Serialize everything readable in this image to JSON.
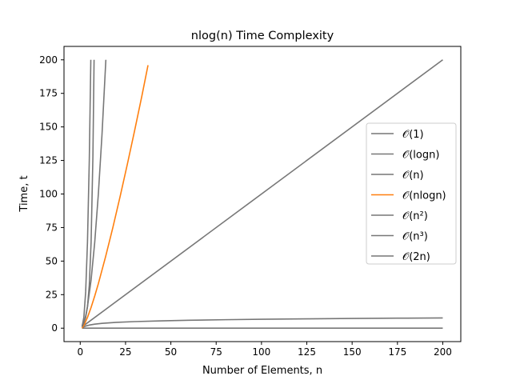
{
  "chart_data": {
    "type": "line",
    "title": "nlog(n) Time Complexity",
    "xlabel": "Number of Elements, n",
    "ylabel": "Time, t",
    "xlim": [
      -8.95,
      209.95
    ],
    "ylim": [
      -10.0,
      210.0
    ],
    "xticks": [
      0,
      25,
      50,
      75,
      100,
      125,
      150,
      175,
      200
    ],
    "yticks": [
      0,
      25,
      50,
      75,
      100,
      125,
      150,
      175,
      200
    ],
    "grid": false,
    "legend_position": "right",
    "series": [
      {
        "name": "𝒪(1)",
        "color": "#777777",
        "x": [
          1,
          200
        ],
        "y": [
          0,
          0
        ]
      },
      {
        "name": "𝒪(logn)",
        "color": "#777777",
        "x": [
          1,
          2,
          3,
          5,
          8,
          12,
          20,
          30,
          45,
          60,
          80,
          100,
          125,
          150,
          175,
          200
        ],
        "y": [
          0,
          1,
          1.58,
          2.32,
          3,
          3.58,
          4.32,
          4.91,
          5.49,
          5.91,
          6.32,
          6.64,
          6.97,
          7.23,
          7.45,
          7.64
        ]
      },
      {
        "name": "𝒪(n)",
        "color": "#777777",
        "x": [
          1,
          200
        ],
        "y": [
          1,
          200
        ]
      },
      {
        "name": "𝒪(nlogn)",
        "color": "#ff7f0e",
        "x": [
          1,
          2,
          4,
          6,
          8,
          10,
          14,
          18,
          22,
          26,
          30,
          34,
          37.4
        ],
        "y": [
          0,
          2,
          8,
          15.5,
          24,
          33.2,
          53.3,
          75,
          98.1,
          122.2,
          147.2,
          173,
          196
        ]
      },
      {
        "name": "𝒪(n²)",
        "color": "#777777",
        "x": [
          1,
          2,
          3,
          4,
          6,
          8,
          10,
          12,
          14.14
        ],
        "y": [
          1,
          4,
          9,
          16,
          36,
          64,
          100,
          144,
          200
        ]
      },
      {
        "name": "𝒪(n³)",
        "color": "#777777",
        "x": [
          1,
          2,
          3,
          4,
          5,
          5.85
        ],
        "y": [
          1,
          8,
          27,
          64,
          125,
          200
        ]
      },
      {
        "name": "𝒪(2n)",
        "color": "#777777",
        "x": [
          1,
          2,
          3,
          4,
          5,
          6,
          7,
          7.64
        ],
        "y": [
          2,
          4,
          8,
          16,
          32,
          64,
          128,
          200
        ]
      }
    ]
  }
}
